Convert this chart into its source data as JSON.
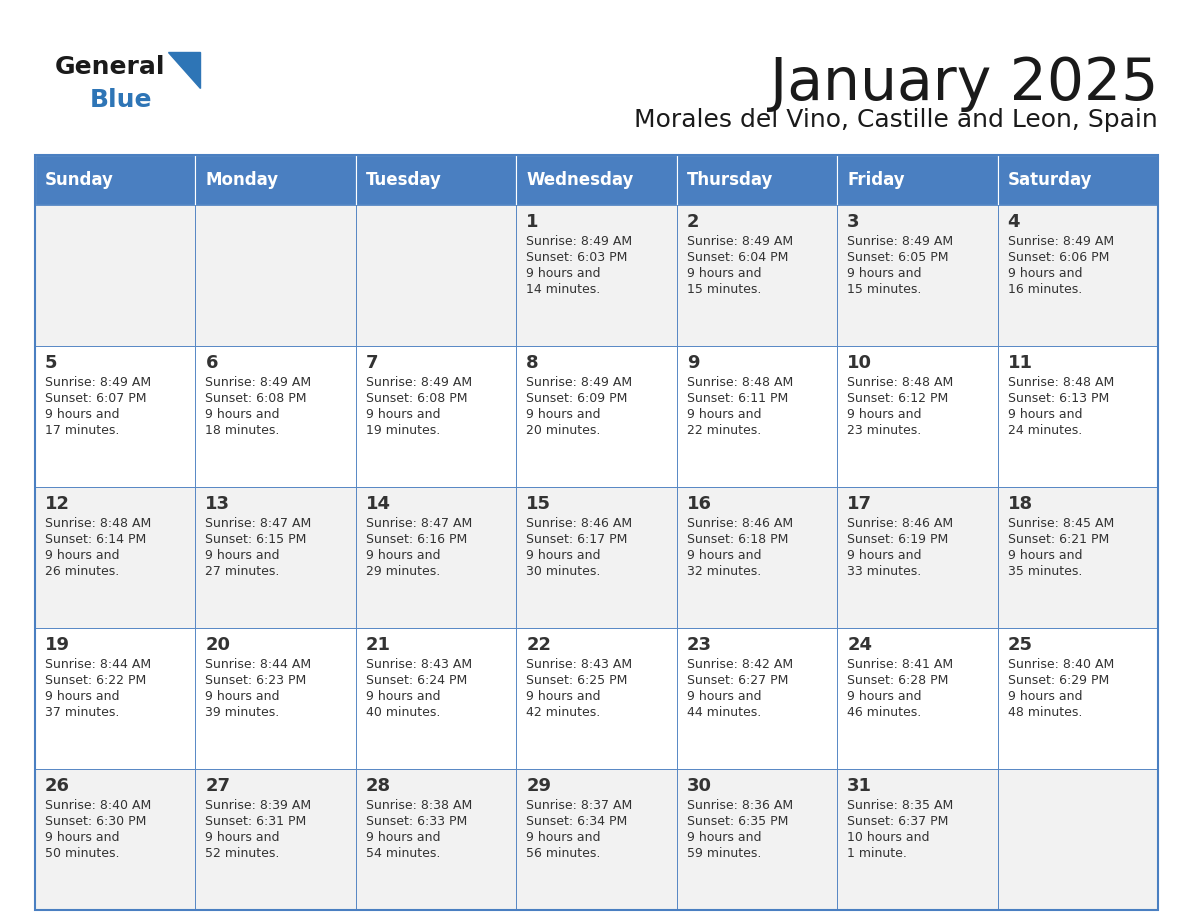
{
  "title": "January 2025",
  "subtitle": "Morales del Vino, Castille and Leon, Spain",
  "days_of_week": [
    "Sunday",
    "Monday",
    "Tuesday",
    "Wednesday",
    "Thursday",
    "Friday",
    "Saturday"
  ],
  "header_bg": "#4A7FC1",
  "header_text_color": "#FFFFFF",
  "cell_bg_odd": "#F2F2F2",
  "cell_bg_even": "#FFFFFF",
  "border_color": "#4A7FC1",
  "text_color": "#333333",
  "general_color": "#1a1a1a",
  "blue_color": "#2E75B6",
  "calendar_data": [
    [
      null,
      null,
      null,
      {
        "day": 1,
        "sunrise": "8:49 AM",
        "sunset": "6:03 PM",
        "daylight": "9 hours and\n14 minutes."
      },
      {
        "day": 2,
        "sunrise": "8:49 AM",
        "sunset": "6:04 PM",
        "daylight": "9 hours and\n15 minutes."
      },
      {
        "day": 3,
        "sunrise": "8:49 AM",
        "sunset": "6:05 PM",
        "daylight": "9 hours and\n15 minutes."
      },
      {
        "day": 4,
        "sunrise": "8:49 AM",
        "sunset": "6:06 PM",
        "daylight": "9 hours and\n16 minutes."
      }
    ],
    [
      {
        "day": 5,
        "sunrise": "8:49 AM",
        "sunset": "6:07 PM",
        "daylight": "9 hours and\n17 minutes."
      },
      {
        "day": 6,
        "sunrise": "8:49 AM",
        "sunset": "6:08 PM",
        "daylight": "9 hours and\n18 minutes."
      },
      {
        "day": 7,
        "sunrise": "8:49 AM",
        "sunset": "6:08 PM",
        "daylight": "9 hours and\n19 minutes."
      },
      {
        "day": 8,
        "sunrise": "8:49 AM",
        "sunset": "6:09 PM",
        "daylight": "9 hours and\n20 minutes."
      },
      {
        "day": 9,
        "sunrise": "8:48 AM",
        "sunset": "6:11 PM",
        "daylight": "9 hours and\n22 minutes."
      },
      {
        "day": 10,
        "sunrise": "8:48 AM",
        "sunset": "6:12 PM",
        "daylight": "9 hours and\n23 minutes."
      },
      {
        "day": 11,
        "sunrise": "8:48 AM",
        "sunset": "6:13 PM",
        "daylight": "9 hours and\n24 minutes."
      }
    ],
    [
      {
        "day": 12,
        "sunrise": "8:48 AM",
        "sunset": "6:14 PM",
        "daylight": "9 hours and\n26 minutes."
      },
      {
        "day": 13,
        "sunrise": "8:47 AM",
        "sunset": "6:15 PM",
        "daylight": "9 hours and\n27 minutes."
      },
      {
        "day": 14,
        "sunrise": "8:47 AM",
        "sunset": "6:16 PM",
        "daylight": "9 hours and\n29 minutes."
      },
      {
        "day": 15,
        "sunrise": "8:46 AM",
        "sunset": "6:17 PM",
        "daylight": "9 hours and\n30 minutes."
      },
      {
        "day": 16,
        "sunrise": "8:46 AM",
        "sunset": "6:18 PM",
        "daylight": "9 hours and\n32 minutes."
      },
      {
        "day": 17,
        "sunrise": "8:46 AM",
        "sunset": "6:19 PM",
        "daylight": "9 hours and\n33 minutes."
      },
      {
        "day": 18,
        "sunrise": "8:45 AM",
        "sunset": "6:21 PM",
        "daylight": "9 hours and\n35 minutes."
      }
    ],
    [
      {
        "day": 19,
        "sunrise": "8:44 AM",
        "sunset": "6:22 PM",
        "daylight": "9 hours and\n37 minutes."
      },
      {
        "day": 20,
        "sunrise": "8:44 AM",
        "sunset": "6:23 PM",
        "daylight": "9 hours and\n39 minutes."
      },
      {
        "day": 21,
        "sunrise": "8:43 AM",
        "sunset": "6:24 PM",
        "daylight": "9 hours and\n40 minutes."
      },
      {
        "day": 22,
        "sunrise": "8:43 AM",
        "sunset": "6:25 PM",
        "daylight": "9 hours and\n42 minutes."
      },
      {
        "day": 23,
        "sunrise": "8:42 AM",
        "sunset": "6:27 PM",
        "daylight": "9 hours and\n44 minutes."
      },
      {
        "day": 24,
        "sunrise": "8:41 AM",
        "sunset": "6:28 PM",
        "daylight": "9 hours and\n46 minutes."
      },
      {
        "day": 25,
        "sunrise": "8:40 AM",
        "sunset": "6:29 PM",
        "daylight": "9 hours and\n48 minutes."
      }
    ],
    [
      {
        "day": 26,
        "sunrise": "8:40 AM",
        "sunset": "6:30 PM",
        "daylight": "9 hours and\n50 minutes."
      },
      {
        "day": 27,
        "sunrise": "8:39 AM",
        "sunset": "6:31 PM",
        "daylight": "9 hours and\n52 minutes."
      },
      {
        "day": 28,
        "sunrise": "8:38 AM",
        "sunset": "6:33 PM",
        "daylight": "9 hours and\n54 minutes."
      },
      {
        "day": 29,
        "sunrise": "8:37 AM",
        "sunset": "6:34 PM",
        "daylight": "9 hours and\n56 minutes."
      },
      {
        "day": 30,
        "sunrise": "8:36 AM",
        "sunset": "6:35 PM",
        "daylight": "9 hours and\n59 minutes."
      },
      {
        "day": 31,
        "sunrise": "8:35 AM",
        "sunset": "6:37 PM",
        "daylight": "10 hours and\n1 minute."
      },
      null
    ]
  ]
}
